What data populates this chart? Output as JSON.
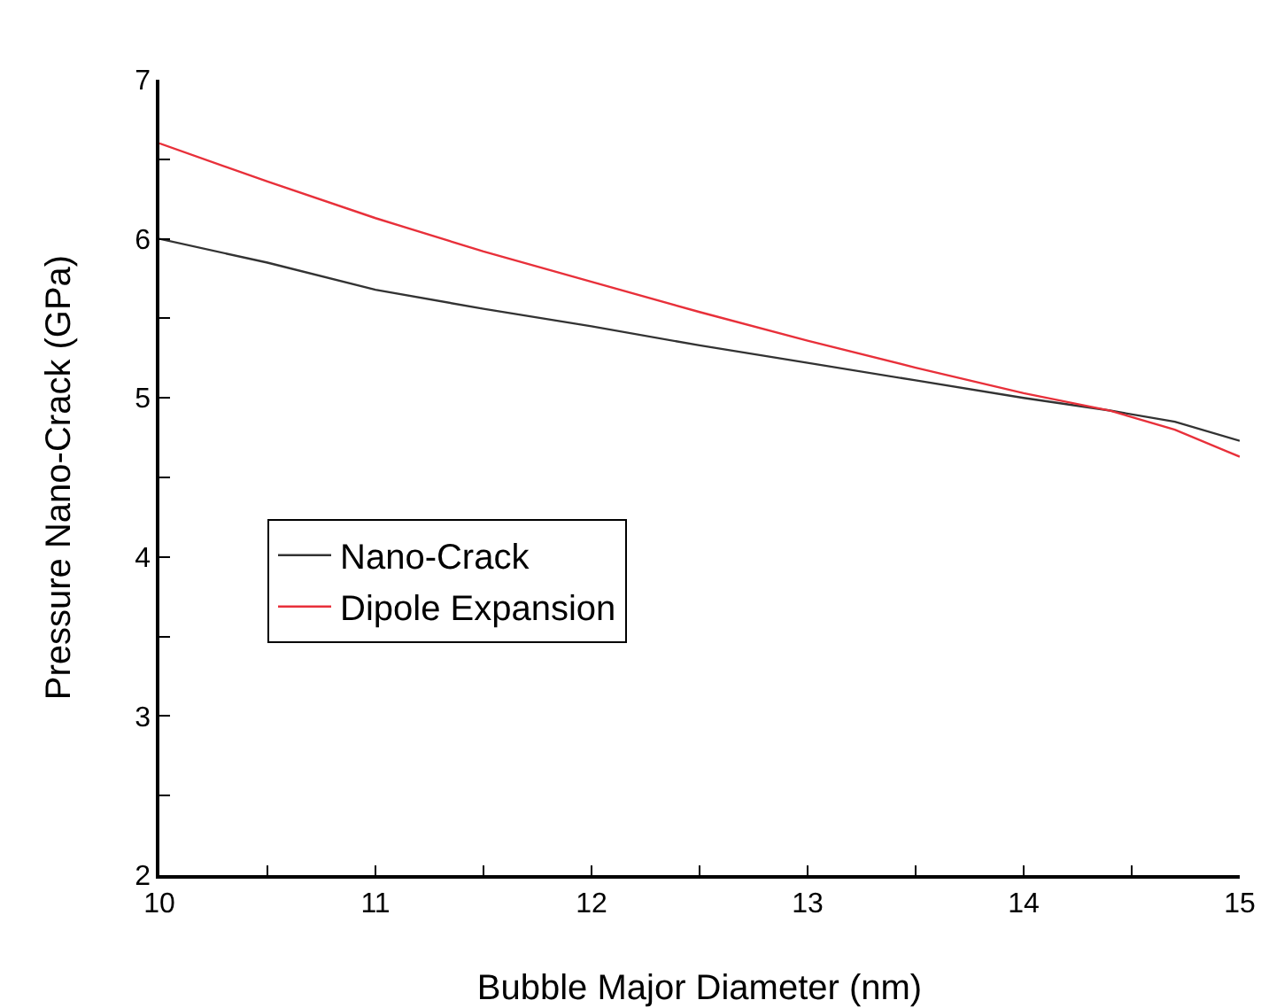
{
  "chart_data": {
    "type": "line",
    "xlabel": "Bubble Major Diameter (nm)",
    "ylabel": "Pressure Nano-Crack (GPa)",
    "x": [
      10,
      10.5,
      11,
      11.5,
      12,
      12.5,
      13,
      13.5,
      14,
      14.4,
      14.7,
      15
    ],
    "series": [
      {
        "name": "Nano-Crack",
        "color": "#333333",
        "values": [
          6.0,
          5.85,
          5.68,
          5.56,
          5.45,
          5.33,
          5.22,
          5.11,
          5.0,
          4.92,
          4.85,
          4.73
        ]
      },
      {
        "name": "Dipole Expansion",
        "color": "#e8303a",
        "values": [
          6.6,
          6.36,
          6.13,
          5.92,
          5.73,
          5.54,
          5.36,
          5.19,
          5.03,
          4.92,
          4.8,
          4.63
        ]
      }
    ],
    "xlim": [
      10,
      15
    ],
    "ylim": [
      2,
      7
    ],
    "xticks": [
      10,
      {
        "value": 10.5,
        "label": null
      },
      11,
      {
        "value": 11.5,
        "label": null
      },
      12,
      {
        "value": 12.5,
        "label": null
      },
      13,
      {
        "value": 13.5,
        "label": null
      },
      14,
      {
        "value": 14.5,
        "label": null
      },
      15
    ],
    "yticks": [
      2,
      {
        "value": 2.5,
        "label": null
      },
      3,
      {
        "value": 3.5,
        "label": null
      },
      4,
      {
        "value": 4.5,
        "label": null
      },
      5,
      {
        "value": 5.5,
        "label": null
      },
      6,
      {
        "value": 6.5,
        "label": null
      },
      7
    ],
    "grid": false,
    "legend": "left",
    "marker": "none",
    "line_style": "solid"
  }
}
